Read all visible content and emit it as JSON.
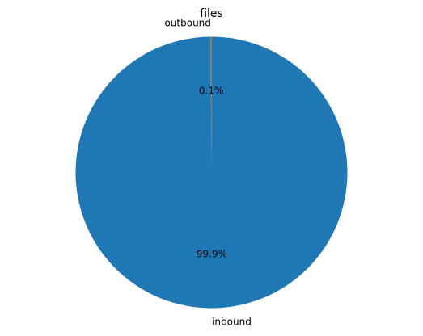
{
  "chart_data": {
    "type": "pie",
    "title": "files",
    "labels": [
      "outbound",
      "inbound"
    ],
    "values": [
      0.1,
      99.9
    ],
    "percent_labels": [
      "0.1%",
      "99.9%"
    ],
    "colors": [
      "#ff7f0e",
      "#1f77b4"
    ],
    "start_angle_deg": 90,
    "direction": "counterclockwise",
    "legend": "none"
  }
}
